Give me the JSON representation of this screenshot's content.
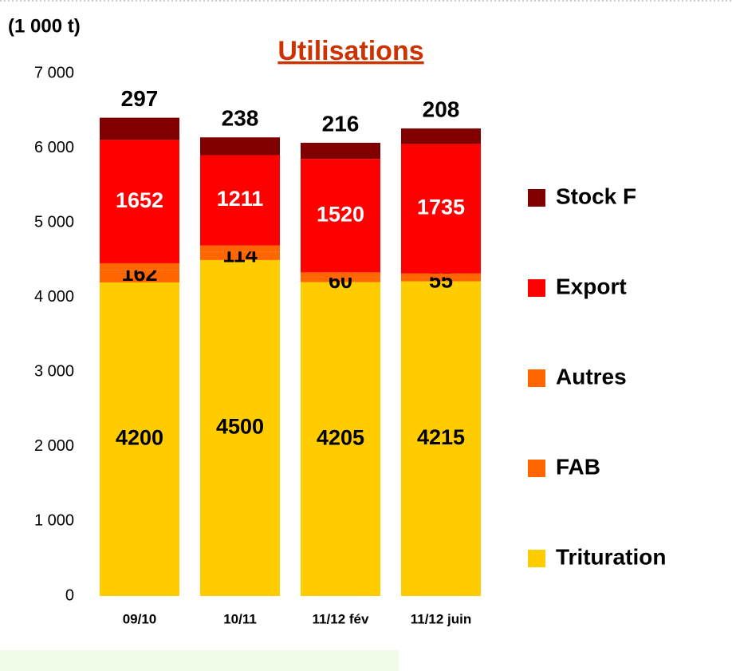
{
  "chart_data": {
    "type": "stacked_bar",
    "title": "Utilisations",
    "y_label": "(1 000 t)",
    "categories": [
      "09/10",
      "10/11",
      "11/12 fév",
      "11/12 juin"
    ],
    "series": [
      {
        "name": "Trituration",
        "color": "#FFCC00",
        "values": [
          4200,
          4500,
          4205,
          4215
        ],
        "labels": true
      },
      {
        "name": "FAB",
        "color": "#FF6600",
        "values": [
          162,
          114,
          60,
          55
        ],
        "labels": true
      },
      {
        "name": "Autres",
        "color": "#FF6600",
        "values": [
          95,
          80,
          70,
          50
        ],
        "labels": false
      },
      {
        "name": "Export",
        "color": "#FF0000",
        "values": [
          1652,
          1211,
          1520,
          1735
        ],
        "labels": true
      },
      {
        "name": "Stock F",
        "color": "#800000",
        "values": [
          297,
          238,
          216,
          208
        ],
        "labels": true
      }
    ],
    "ylim": [
      0,
      7000
    ],
    "yticks": [
      0,
      {
        "value": 1000,
        "label": "1 000"
      },
      {
        "value": 2000,
        "label": "2 000"
      },
      {
        "value": 3000,
        "label": "3 000"
      },
      {
        "value": 4000,
        "label": "4 000"
      },
      {
        "value": 5000,
        "label": "5 000"
      },
      {
        "value": 6000,
        "label": "6 000"
      },
      {
        "value": 7000,
        "label": "7 000"
      }
    ],
    "grid": false,
    "legend": "right"
  }
}
